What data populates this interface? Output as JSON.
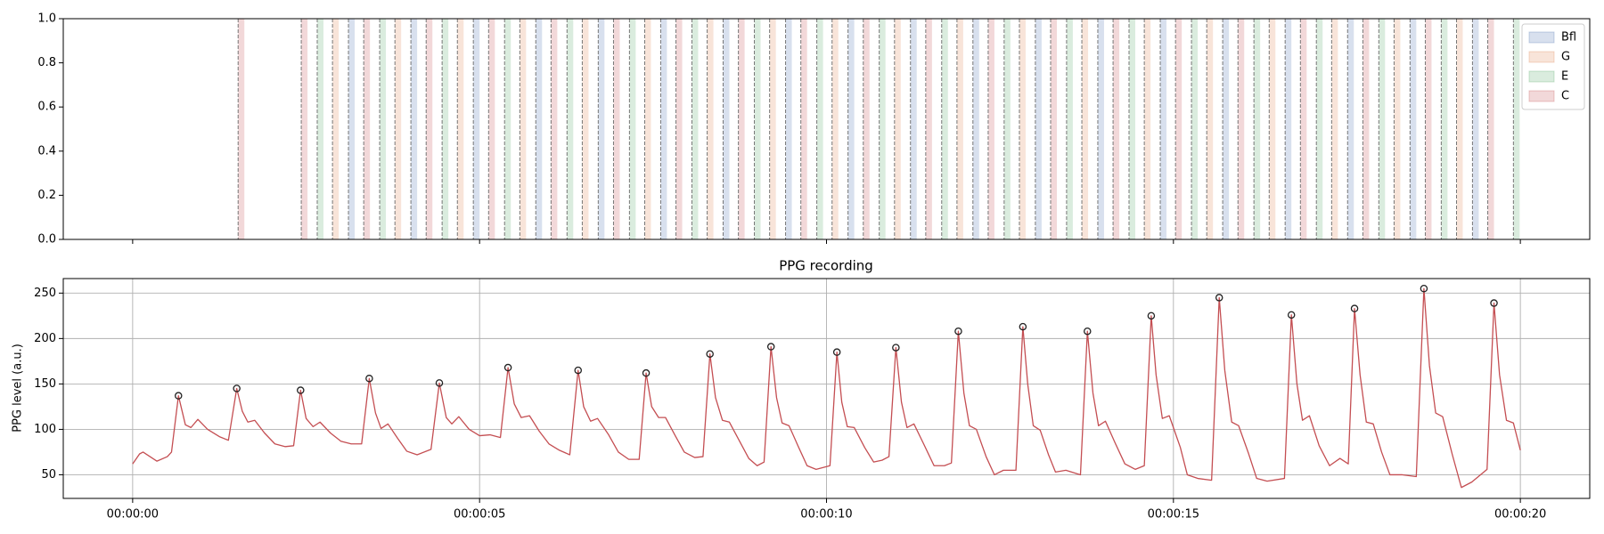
{
  "chart_data": [
    {
      "type": "span",
      "xlim": [
        -1,
        21
      ],
      "ylim": [
        0,
        1
      ],
      "xticks": [
        0,
        5,
        10,
        15,
        20
      ],
      "yticks": [
        {
          "value": 0,
          "label": "0.0"
        },
        {
          "value": 0.2,
          "label": "0.2"
        },
        {
          "value": 0.4,
          "label": "0.4"
        },
        {
          "value": 0.6,
          "label": "0.6"
        },
        {
          "value": 0.8,
          "label": "0.8"
        },
        {
          "value": 1,
          "label": "1.0"
        }
      ],
      "legend": "upper right",
      "series": [
        {
          "name": "Bfl",
          "color": "#4c72b0"
        },
        {
          "name": "G",
          "color": "#dd8452"
        },
        {
          "name": "E",
          "color": "#55a868"
        },
        {
          "name": "C",
          "color": "#c44e52"
        }
      ],
      "spans": {
        "start": [
          1.52,
          2.43,
          2.66,
          2.88,
          3.11,
          3.33,
          3.56,
          3.78,
          4.01,
          4.23,
          4.46,
          4.68,
          4.91,
          5.13,
          5.36,
          5.58,
          5.81,
          6.03,
          6.26,
          6.48,
          6.71,
          6.93,
          7.16,
          7.38,
          7.61,
          7.83,
          8.06,
          8.28,
          8.51,
          8.73,
          8.96,
          9.18,
          9.41,
          9.63,
          9.86,
          10.08,
          10.31,
          10.53,
          10.76,
          10.98,
          11.21,
          11.43,
          11.66,
          11.88,
          12.11,
          12.33,
          12.56,
          12.78,
          13.01,
          13.23,
          13.46,
          13.68,
          13.91,
          14.13,
          14.36,
          14.58,
          14.81,
          15.03,
          15.26,
          15.48,
          15.71,
          15.93,
          16.16,
          16.38,
          16.61,
          16.83,
          17.06,
          17.28,
          17.51,
          17.73,
          17.96,
          18.18,
          18.41,
          18.63,
          18.86,
          19.08,
          19.31,
          19.53,
          19.9
        ],
        "end": [
          1.61,
          2.52,
          2.75,
          2.97,
          3.2,
          3.42,
          3.65,
          3.87,
          4.1,
          4.32,
          4.55,
          4.77,
          5.0,
          5.22,
          5.45,
          5.67,
          5.9,
          6.12,
          6.35,
          6.57,
          6.8,
          7.02,
          7.25,
          7.47,
          7.7,
          7.92,
          8.15,
          8.37,
          8.6,
          8.82,
          9.05,
          9.27,
          9.5,
          9.72,
          9.95,
          10.17,
          10.4,
          10.62,
          10.85,
          11.07,
          11.3,
          11.52,
          11.75,
          11.97,
          12.2,
          12.42,
          12.65,
          12.87,
          13.1,
          13.32,
          13.55,
          13.77,
          14.0,
          14.22,
          14.45,
          14.67,
          14.9,
          15.12,
          15.35,
          15.57,
          15.8,
          16.02,
          16.25,
          16.47,
          16.7,
          16.92,
          17.15,
          17.37,
          17.6,
          17.82,
          18.05,
          18.27,
          18.5,
          18.72,
          18.95,
          19.17,
          19.4,
          19.62,
          19.99
        ],
        "label": [
          "C",
          "C",
          "E",
          "G",
          "Bfl",
          "C",
          "E",
          "G",
          "Bfl",
          "C",
          "E",
          "G",
          "Bfl",
          "C",
          "E",
          "G",
          "Bfl",
          "C",
          "E",
          "G",
          "Bfl",
          "C",
          "E",
          "G",
          "Bfl",
          "C",
          "E",
          "G",
          "Bfl",
          "C",
          "E",
          "G",
          "Bfl",
          "C",
          "E",
          "G",
          "Bfl",
          "C",
          "E",
          "G",
          "Bfl",
          "C",
          "E",
          "G",
          "Bfl",
          "C",
          "E",
          "G",
          "Bfl",
          "C",
          "E",
          "G",
          "Bfl",
          "C",
          "E",
          "G",
          "Bfl",
          "C",
          "E",
          "G",
          "Bfl",
          "C",
          "E",
          "G",
          "Bfl",
          "C",
          "E",
          "G",
          "Bfl",
          "C",
          "E",
          "G",
          "Bfl",
          "C",
          "E",
          "G",
          "Bfl",
          "C",
          "E"
        ]
      }
    },
    {
      "type": "line",
      "title": "PPG recording",
      "ylabel": "PPG level (a.u.)",
      "xlim": [
        -1,
        21
      ],
      "ylim": [
        24,
        266
      ],
      "xticks": [
        {
          "value": 0,
          "label": "00:00:00"
        },
        {
          "value": 5,
          "label": "00:00:05"
        },
        {
          "value": 10,
          "label": "00:00:10"
        },
        {
          "value": 15,
          "label": "00:00:15"
        },
        {
          "value": 20,
          "label": "00:00:20"
        }
      ],
      "yticks": [
        50,
        100,
        150,
        200,
        250
      ],
      "grid": true,
      "color": "#c44e52",
      "x": [
        0,
        0.1,
        0.15,
        0.25,
        0.35,
        0.5,
        0.56,
        0.66,
        0.76,
        0.84,
        0.94,
        1.08,
        1.25,
        1.38,
        1.5,
        1.58,
        1.66,
        1.76,
        1.9,
        2.05,
        2.2,
        2.32,
        2.42,
        2.5,
        2.6,
        2.7,
        2.85,
        3.0,
        3.15,
        3.3,
        3.41,
        3.5,
        3.58,
        3.68,
        3.82,
        3.95,
        4.1,
        4.3,
        4.42,
        4.52,
        4.6,
        4.7,
        4.85,
        5.0,
        5.15,
        5.3,
        5.41,
        5.5,
        5.6,
        5.72,
        5.86,
        6.0,
        6.15,
        6.3,
        6.42,
        6.5,
        6.6,
        6.7,
        6.86,
        7.0,
        7.15,
        7.3,
        7.4,
        7.48,
        7.58,
        7.68,
        7.82,
        7.95,
        8.1,
        8.22,
        8.32,
        8.4,
        8.5,
        8.6,
        8.74,
        8.88,
        9.0,
        9.1,
        9.2,
        9.28,
        9.36,
        9.46,
        9.6,
        9.72,
        9.85,
        10.05,
        10.15,
        10.22,
        10.3,
        10.4,
        10.55,
        10.68,
        10.8,
        10.9,
        11.0,
        11.08,
        11.16,
        11.26,
        11.4,
        11.55,
        11.7,
        11.8,
        11.9,
        11.98,
        12.06,
        12.16,
        12.3,
        12.42,
        12.55,
        12.73,
        12.83,
        12.9,
        12.98,
        13.08,
        13.2,
        13.3,
        13.45,
        13.66,
        13.76,
        13.84,
        13.92,
        14.02,
        14.16,
        14.3,
        14.45,
        14.58,
        14.68,
        14.75,
        14.84,
        14.94,
        15.1,
        15.2,
        15.35,
        15.55,
        15.66,
        15.74,
        15.84,
        15.94,
        16.08,
        16.2,
        16.35,
        16.6,
        16.7,
        16.78,
        16.86,
        16.96,
        17.1,
        17.25,
        17.4,
        17.52,
        17.61,
        17.69,
        17.78,
        17.88,
        18.0,
        18.12,
        18.3,
        18.5,
        18.61,
        18.69,
        18.78,
        18.88,
        19.02,
        19.15,
        19.3,
        19.52,
        19.62,
        19.7,
        19.8,
        19.9,
        20.0
      ],
      "values": [
        62,
        73,
        75,
        70,
        65,
        70,
        75,
        137,
        105,
        102,
        111,
        100,
        92,
        88,
        145,
        120,
        108,
        110,
        96,
        84,
        81,
        82,
        143,
        112,
        103,
        108,
        96,
        87,
        84,
        84,
        156,
        118,
        101,
        106,
        90,
        76,
        72,
        78,
        151,
        113,
        106,
        114,
        100,
        93,
        94,
        91,
        168,
        128,
        113,
        115,
        98,
        84,
        77,
        72,
        165,
        125,
        109,
        112,
        94,
        75,
        67,
        67,
        162,
        125,
        113,
        113,
        93,
        75,
        69,
        70,
        183,
        135,
        110,
        108,
        88,
        68,
        60,
        64,
        191,
        135,
        107,
        104,
        80,
        60,
        56,
        60,
        185,
        130,
        103,
        102,
        80,
        64,
        66,
        70,
        190,
        130,
        102,
        106,
        84,
        60,
        60,
        63,
        208,
        140,
        104,
        100,
        70,
        50,
        55,
        55,
        213,
        150,
        104,
        99,
        72,
        53,
        55,
        50,
        208,
        140,
        104,
        109,
        85,
        62,
        56,
        60,
        225,
        160,
        112,
        115,
        80,
        50,
        46,
        44,
        245,
        165,
        108,
        104,
        74,
        46,
        43,
        46,
        226,
        150,
        110,
        115,
        82,
        60,
        68,
        62,
        233,
        160,
        108,
        106,
        75,
        50,
        50,
        48,
        255,
        170,
        118,
        114,
        72,
        36,
        42,
        56,
        239,
        160,
        110,
        107,
        77
      ],
      "peaks": {
        "x": [
          0.66,
          1.5,
          2.42,
          3.41,
          4.42,
          5.41,
          6.42,
          7.4,
          8.32,
          9.2,
          10.15,
          11.0,
          11.9,
          12.83,
          13.76,
          14.68,
          15.66,
          16.7,
          17.61,
          18.61,
          19.62
        ],
        "values": [
          137,
          145,
          143,
          156,
          151,
          168,
          165,
          162,
          183,
          191,
          185,
          190,
          208,
          213,
          208,
          225,
          245,
          226,
          233,
          255,
          239
        ]
      }
    }
  ]
}
